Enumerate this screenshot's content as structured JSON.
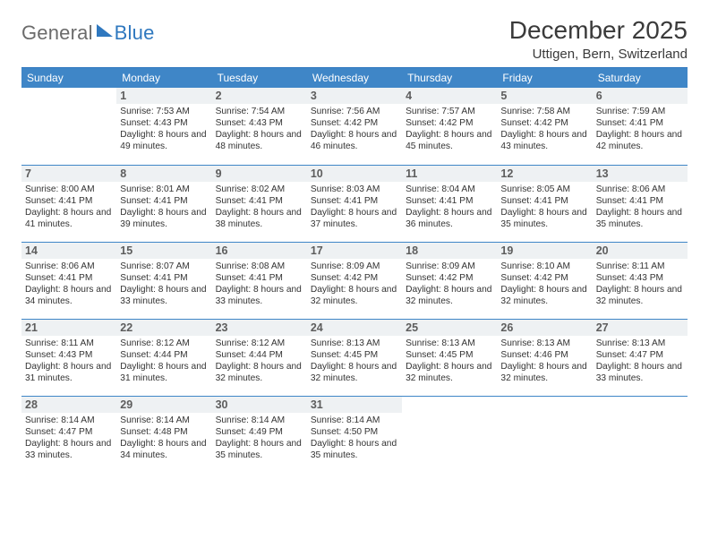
{
  "brand": {
    "part1": "General",
    "part2": "Blue"
  },
  "title": "December 2025",
  "location": "Uttigen, Bern, Switzerland",
  "colors": {
    "header_bg": "#3f86c7",
    "header_fg": "#ffffff",
    "rule": "#2f78bf",
    "daynum_bg": "#eef1f3",
    "text": "#333333"
  },
  "dayNames": [
    "Sunday",
    "Monday",
    "Tuesday",
    "Wednesday",
    "Thursday",
    "Friday",
    "Saturday"
  ],
  "weeks": [
    [
      {
        "n": "",
        "sr": "",
        "ss": "",
        "dl": ""
      },
      {
        "n": "1",
        "sr": "Sunrise: 7:53 AM",
        "ss": "Sunset: 4:43 PM",
        "dl": "Daylight: 8 hours and 49 minutes."
      },
      {
        "n": "2",
        "sr": "Sunrise: 7:54 AM",
        "ss": "Sunset: 4:43 PM",
        "dl": "Daylight: 8 hours and 48 minutes."
      },
      {
        "n": "3",
        "sr": "Sunrise: 7:56 AM",
        "ss": "Sunset: 4:42 PM",
        "dl": "Daylight: 8 hours and 46 minutes."
      },
      {
        "n": "4",
        "sr": "Sunrise: 7:57 AM",
        "ss": "Sunset: 4:42 PM",
        "dl": "Daylight: 8 hours and 45 minutes."
      },
      {
        "n": "5",
        "sr": "Sunrise: 7:58 AM",
        "ss": "Sunset: 4:42 PM",
        "dl": "Daylight: 8 hours and 43 minutes."
      },
      {
        "n": "6",
        "sr": "Sunrise: 7:59 AM",
        "ss": "Sunset: 4:41 PM",
        "dl": "Daylight: 8 hours and 42 minutes."
      }
    ],
    [
      {
        "n": "7",
        "sr": "Sunrise: 8:00 AM",
        "ss": "Sunset: 4:41 PM",
        "dl": "Daylight: 8 hours and 41 minutes."
      },
      {
        "n": "8",
        "sr": "Sunrise: 8:01 AM",
        "ss": "Sunset: 4:41 PM",
        "dl": "Daylight: 8 hours and 39 minutes."
      },
      {
        "n": "9",
        "sr": "Sunrise: 8:02 AM",
        "ss": "Sunset: 4:41 PM",
        "dl": "Daylight: 8 hours and 38 minutes."
      },
      {
        "n": "10",
        "sr": "Sunrise: 8:03 AM",
        "ss": "Sunset: 4:41 PM",
        "dl": "Daylight: 8 hours and 37 minutes."
      },
      {
        "n": "11",
        "sr": "Sunrise: 8:04 AM",
        "ss": "Sunset: 4:41 PM",
        "dl": "Daylight: 8 hours and 36 minutes."
      },
      {
        "n": "12",
        "sr": "Sunrise: 8:05 AM",
        "ss": "Sunset: 4:41 PM",
        "dl": "Daylight: 8 hours and 35 minutes."
      },
      {
        "n": "13",
        "sr": "Sunrise: 8:06 AM",
        "ss": "Sunset: 4:41 PM",
        "dl": "Daylight: 8 hours and 35 minutes."
      }
    ],
    [
      {
        "n": "14",
        "sr": "Sunrise: 8:06 AM",
        "ss": "Sunset: 4:41 PM",
        "dl": "Daylight: 8 hours and 34 minutes."
      },
      {
        "n": "15",
        "sr": "Sunrise: 8:07 AM",
        "ss": "Sunset: 4:41 PM",
        "dl": "Daylight: 8 hours and 33 minutes."
      },
      {
        "n": "16",
        "sr": "Sunrise: 8:08 AM",
        "ss": "Sunset: 4:41 PM",
        "dl": "Daylight: 8 hours and 33 minutes."
      },
      {
        "n": "17",
        "sr": "Sunrise: 8:09 AM",
        "ss": "Sunset: 4:42 PM",
        "dl": "Daylight: 8 hours and 32 minutes."
      },
      {
        "n": "18",
        "sr": "Sunrise: 8:09 AM",
        "ss": "Sunset: 4:42 PM",
        "dl": "Daylight: 8 hours and 32 minutes."
      },
      {
        "n": "19",
        "sr": "Sunrise: 8:10 AM",
        "ss": "Sunset: 4:42 PM",
        "dl": "Daylight: 8 hours and 32 minutes."
      },
      {
        "n": "20",
        "sr": "Sunrise: 8:11 AM",
        "ss": "Sunset: 4:43 PM",
        "dl": "Daylight: 8 hours and 32 minutes."
      }
    ],
    [
      {
        "n": "21",
        "sr": "Sunrise: 8:11 AM",
        "ss": "Sunset: 4:43 PM",
        "dl": "Daylight: 8 hours and 31 minutes."
      },
      {
        "n": "22",
        "sr": "Sunrise: 8:12 AM",
        "ss": "Sunset: 4:44 PM",
        "dl": "Daylight: 8 hours and 31 minutes."
      },
      {
        "n": "23",
        "sr": "Sunrise: 8:12 AM",
        "ss": "Sunset: 4:44 PM",
        "dl": "Daylight: 8 hours and 32 minutes."
      },
      {
        "n": "24",
        "sr": "Sunrise: 8:13 AM",
        "ss": "Sunset: 4:45 PM",
        "dl": "Daylight: 8 hours and 32 minutes."
      },
      {
        "n": "25",
        "sr": "Sunrise: 8:13 AM",
        "ss": "Sunset: 4:45 PM",
        "dl": "Daylight: 8 hours and 32 minutes."
      },
      {
        "n": "26",
        "sr": "Sunrise: 8:13 AM",
        "ss": "Sunset: 4:46 PM",
        "dl": "Daylight: 8 hours and 32 minutes."
      },
      {
        "n": "27",
        "sr": "Sunrise: 8:13 AM",
        "ss": "Sunset: 4:47 PM",
        "dl": "Daylight: 8 hours and 33 minutes."
      }
    ],
    [
      {
        "n": "28",
        "sr": "Sunrise: 8:14 AM",
        "ss": "Sunset: 4:47 PM",
        "dl": "Daylight: 8 hours and 33 minutes."
      },
      {
        "n": "29",
        "sr": "Sunrise: 8:14 AM",
        "ss": "Sunset: 4:48 PM",
        "dl": "Daylight: 8 hours and 34 minutes."
      },
      {
        "n": "30",
        "sr": "Sunrise: 8:14 AM",
        "ss": "Sunset: 4:49 PM",
        "dl": "Daylight: 8 hours and 35 minutes."
      },
      {
        "n": "31",
        "sr": "Sunrise: 8:14 AM",
        "ss": "Sunset: 4:50 PM",
        "dl": "Daylight: 8 hours and 35 minutes."
      },
      {
        "n": "",
        "sr": "",
        "ss": "",
        "dl": ""
      },
      {
        "n": "",
        "sr": "",
        "ss": "",
        "dl": ""
      },
      {
        "n": "",
        "sr": "",
        "ss": "",
        "dl": ""
      }
    ]
  ]
}
